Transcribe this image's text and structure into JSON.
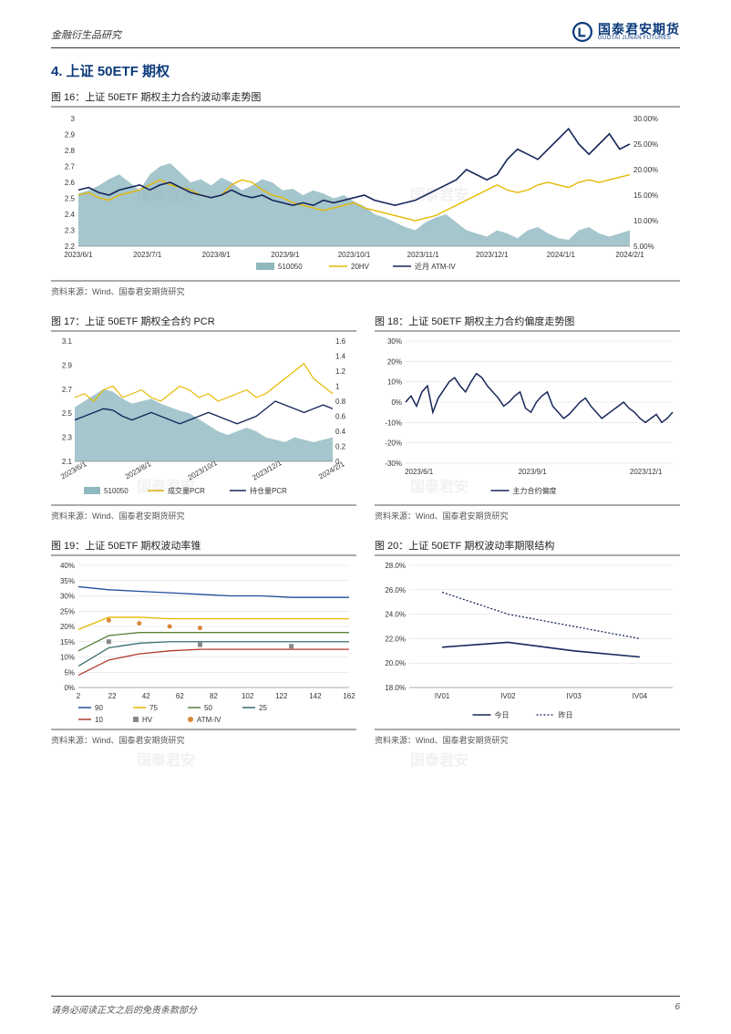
{
  "header": {
    "left": "金融衍生品研究",
    "brand_cn": "国泰君安期货",
    "brand_en": "GUOTAI JUNAN FUTURES"
  },
  "section": {
    "title": "4. 上证 50ETF 期权"
  },
  "footer": {
    "disclaimer": "请务必阅读正文之后的免责条款部分",
    "page": "6"
  },
  "watermark": "国泰君安",
  "colors": {
    "brand": "#0b3a7a",
    "navy": "#16265a",
    "yellow": "#e6b800",
    "teal": "#8fb8bf",
    "grid": "#d9d9d9",
    "axis": "#666",
    "cone90": "#1f4e9c",
    "cone75": "#e6b800",
    "cone50": "#5a803a",
    "cone25": "#3a6e6e",
    "cone10": "#b03a2e",
    "hv": "#888",
    "atm": "#d9863a"
  },
  "fig16": {
    "title": "图 16：上证 50ETF 期权主力合约波动率走势图",
    "source": "资料来源：Wind、国泰君安期货研究",
    "left_label": "",
    "right_label": "",
    "x_labels": [
      "2023/6/1",
      "2023/7/1",
      "2023/8/1",
      "2023/9/1",
      "2023/10/1",
      "2023/11/1",
      "2023/12/1",
      "2024/1/1",
      "2024/2/1"
    ],
    "left_ticks": [
      "2.2",
      "2.3",
      "2.4",
      "2.5",
      "2.6",
      "2.7",
      "2.8",
      "2.9",
      "3"
    ],
    "right_ticks": [
      "5.00%",
      "10.00%",
      "15.00%",
      "20.00%",
      "25.00%",
      "30.00%"
    ],
    "legend": [
      "510050",
      "20HV",
      "近月 ATM-IV"
    ],
    "area_510050": [
      2.53,
      2.55,
      2.58,
      2.62,
      2.65,
      2.6,
      2.55,
      2.65,
      2.7,
      2.72,
      2.66,
      2.6,
      2.62,
      2.58,
      2.63,
      2.6,
      2.55,
      2.58,
      2.62,
      2.6,
      2.55,
      2.56,
      2.52,
      2.55,
      2.53,
      2.5,
      2.52,
      2.48,
      2.45,
      2.4,
      2.38,
      2.35,
      2.32,
      2.3,
      2.35,
      2.38,
      2.4,
      2.35,
      2.3,
      2.28,
      2.26,
      2.3,
      2.28,
      2.25,
      2.3,
      2.32,
      2.28,
      2.25,
      2.24,
      2.3,
      2.32,
      2.28,
      2.26,
      2.28,
      2.3
    ],
    "line_20hv": [
      15,
      15.5,
      14.5,
      14,
      15,
      15.5,
      16,
      17,
      18,
      17,
      16.5,
      16,
      15,
      14.5,
      15,
      17,
      18,
      17.5,
      16,
      15,
      14.5,
      13.5,
      13,
      12.5,
      12,
      12.5,
      13,
      13.5,
      12.5,
      12,
      11.5,
      11,
      10.5,
      10,
      10.5,
      11,
      12,
      13,
      14,
      15,
      16,
      17,
      16,
      15.5,
      16,
      17,
      17.5,
      17,
      16.5,
      17.5,
      18,
      17.5,
      18,
      18.5,
      19
    ],
    "line_atmiv": [
      16,
      16.5,
      15.5,
      15,
      16,
      16.5,
      17,
      16,
      17,
      17.5,
      16.5,
      15.5,
      15,
      14.5,
      15,
      16,
      15,
      14.5,
      15,
      14,
      13.5,
      13,
      13.5,
      13,
      14,
      13.5,
      14,
      14.5,
      15,
      14,
      13.5,
      13,
      13.5,
      14,
      15,
      16,
      17,
      18,
      20,
      19,
      18,
      19,
      22,
      24,
      23,
      22,
      24,
      26,
      28,
      25,
      23,
      25,
      27,
      24,
      25
    ],
    "left_range": [
      2.2,
      3.0
    ],
    "right_range": [
      5,
      30
    ]
  },
  "fig17": {
    "title": "图 17：上证 50ETF 期权全合约 PCR",
    "source": "资料来源：Wind、国泰君安期货研究",
    "x_labels": [
      "2023/6/1",
      "2023/8/1",
      "2023/10/1",
      "2023/12/1",
      "2024/2/1"
    ],
    "left_ticks": [
      "2.1",
      "2.3",
      "2.5",
      "2.7",
      "2.9",
      "3.1"
    ],
    "right_ticks": [
      "0",
      "0.2",
      "0.4",
      "0.6",
      "0.8",
      "1",
      "1.2",
      "1.4",
      "1.6"
    ],
    "legend": [
      "510050",
      "成交量PCR",
      "持仓量PCR"
    ],
    "area_510050": [
      2.55,
      2.6,
      2.65,
      2.7,
      2.68,
      2.62,
      2.58,
      2.6,
      2.62,
      2.58,
      2.55,
      2.52,
      2.5,
      2.45,
      2.4,
      2.35,
      2.32,
      2.35,
      2.38,
      2.35,
      2.3,
      2.28,
      2.26,
      2.3,
      2.28,
      2.26,
      2.28,
      2.3
    ],
    "line_vol_pcr": [
      0.85,
      0.9,
      0.8,
      0.95,
      1.0,
      0.85,
      0.9,
      0.95,
      0.85,
      0.8,
      0.9,
      1.0,
      0.95,
      0.85,
      0.9,
      0.8,
      0.85,
      0.9,
      0.95,
      0.85,
      0.9,
      1.0,
      1.1,
      1.2,
      1.3,
      1.1,
      1.0,
      0.9
    ],
    "line_oi_pcr": [
      0.55,
      0.6,
      0.65,
      0.7,
      0.68,
      0.6,
      0.55,
      0.6,
      0.65,
      0.6,
      0.55,
      0.5,
      0.55,
      0.6,
      0.65,
      0.6,
      0.55,
      0.5,
      0.55,
      0.6,
      0.7,
      0.8,
      0.75,
      0.7,
      0.65,
      0.7,
      0.75,
      0.7
    ],
    "left_range": [
      2.1,
      3.1
    ],
    "right_range": [
      0,
      1.6
    ]
  },
  "fig18": {
    "title": "图 18：上证 50ETF 期权主力合约偏度走势图",
    "source": "资料来源：Wind、国泰君安期货研究",
    "x_labels": [
      "2023/6/1",
      "2023/9/1",
      "2023/12/1"
    ],
    "y_ticks": [
      "-30%",
      "-20%",
      "-10%",
      "0%",
      "10%",
      "20%",
      "30%"
    ],
    "legend": [
      "主力合约偏度"
    ],
    "line_skew": [
      0,
      3,
      -2,
      5,
      8,
      -5,
      2,
      6,
      10,
      12,
      8,
      5,
      10,
      14,
      12,
      8,
      5,
      2,
      -2,
      0,
      3,
      5,
      -3,
      -5,
      0,
      3,
      5,
      -2,
      -5,
      -8,
      -6,
      -3,
      0,
      2,
      -2,
      -5,
      -8,
      -6,
      -4,
      -2,
      0,
      -3,
      -5,
      -8,
      -10,
      -8,
      -6,
      -10,
      -8,
      -5
    ],
    "y_range": [
      -30,
      30
    ]
  },
  "fig19": {
    "title": "图 19：上证 50ETF 期权波动率锥",
    "source": "资料来源：Wind、国泰君安期货研究",
    "x_labels": [
      "2",
      "22",
      "42",
      "62",
      "82",
      "102",
      "122",
      "142",
      "162"
    ],
    "y_ticks": [
      "0%",
      "5%",
      "10%",
      "15%",
      "20%",
      "25%",
      "30%",
      "35%",
      "40%"
    ],
    "legend": [
      "90",
      "75",
      "50",
      "25",
      "10",
      "HV",
      "ATM-IV"
    ],
    "x_values": [
      2,
      22,
      42,
      62,
      82,
      102,
      122,
      142,
      162,
      180
    ],
    "cone90": [
      33,
      32,
      31.5,
      31,
      30.5,
      30,
      30,
      29.5,
      29.5,
      29.5
    ],
    "cone75": [
      19,
      23,
      23,
      22.5,
      22.5,
      22.5,
      22.5,
      22.5,
      22.5,
      22.5
    ],
    "cone50": [
      12,
      17,
      18,
      18,
      18,
      18,
      18,
      18,
      18,
      18
    ],
    "cone25": [
      7,
      13,
      14.5,
      15,
      15,
      15,
      15,
      15,
      15,
      15
    ],
    "cone10": [
      4,
      9,
      11,
      12,
      12.5,
      12.5,
      12.5,
      12.5,
      12.5,
      12.5
    ],
    "hv_points_x": [
      22,
      82,
      142
    ],
    "hv_points_y": [
      15,
      14,
      13.5
    ],
    "atm_points_x": [
      22,
      42,
      62,
      82
    ],
    "atm_points_y": [
      22,
      21,
      20,
      19.5
    ],
    "y_range": [
      0,
      40
    ]
  },
  "fig20": {
    "title": "图 20：上证 50ETF 期权波动率期限结构",
    "source": "资料来源：Wind、国泰君安期货研究",
    "x_labels": [
      "IV01",
      "IV02",
      "IV03",
      "IV04"
    ],
    "y_ticks": [
      "18.0%",
      "20.0%",
      "22.0%",
      "24.0%",
      "26.0%",
      "28.0%"
    ],
    "legend": [
      "今日",
      "昨日"
    ],
    "today": [
      21.3,
      21.7,
      21.0,
      20.5
    ],
    "yesterday": [
      25.8,
      24.0,
      23.0,
      22.0
    ],
    "y_range": [
      18,
      28
    ]
  }
}
